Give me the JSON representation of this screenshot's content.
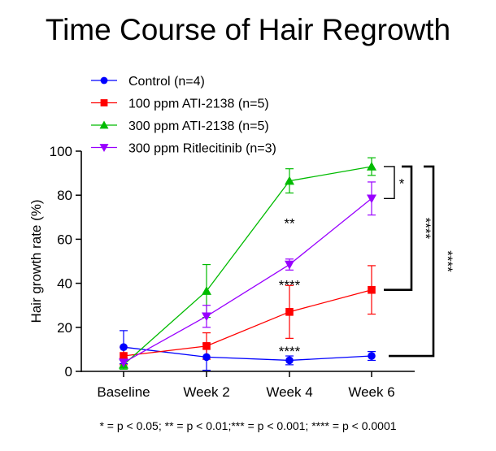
{
  "chart_data": {
    "type": "line",
    "title": "Time Course of Hair Regrowth",
    "xlabel": "",
    "ylabel": "Hair growth rate (%)",
    "categories": [
      "Baseline",
      "Week 2",
      "Week 4",
      "Week 6"
    ],
    "ylim": [
      0,
      100
    ],
    "yticks": [
      0,
      20,
      40,
      60,
      80,
      100
    ],
    "grid": false,
    "legend_position": "top-left",
    "series": [
      {
        "name": "Control (n=4)",
        "color": "#0000FF",
        "marker": "circle",
        "values": [
          11,
          6.5,
          5,
          7
        ],
        "errors": [
          7.5,
          6,
          2,
          2
        ]
      },
      {
        "name": "100 ppm ATI-2138 (n=5)",
        "color": "#FF0000",
        "marker": "square",
        "values": [
          7,
          11.5,
          27,
          37
        ],
        "errors": [
          4,
          6,
          12,
          11
        ]
      },
      {
        "name": "300 ppm ATI-2138 (n=5)",
        "color": "#00BB00",
        "marker": "triangle-up",
        "values": [
          3,
          36.5,
          86.5,
          93
        ],
        "errors": [
          2,
          12,
          5.5,
          4
        ]
      },
      {
        "name": "300 ppm Ritlecitinib (n=3)",
        "color": "#9900FF",
        "marker": "triangle-down",
        "values": [
          4,
          25,
          48.5,
          78.5
        ],
        "errors": [
          2,
          5,
          2.5,
          7.5
        ]
      }
    ],
    "annotations": [
      {
        "text": "**",
        "category": "Week 4",
        "y": 68
      },
      {
        "text": "****",
        "category": "Week 4",
        "y": 40
      },
      {
        "text": "****",
        "category": "Week 4",
        "y": 10
      }
    ],
    "brackets": [
      {
        "label": "*",
        "from_y": 93,
        "to_y": 78.5,
        "level": 1
      },
      {
        "label": "****",
        "from_y": 93,
        "to_y": 37,
        "level": 2
      },
      {
        "label": "****",
        "from_y": 93,
        "to_y": 7,
        "level": 3
      }
    ],
    "footnote": "* = p < 0.05; ** = p < 0.01;*** = p < 0.001; **** = p < 0.0001"
  }
}
